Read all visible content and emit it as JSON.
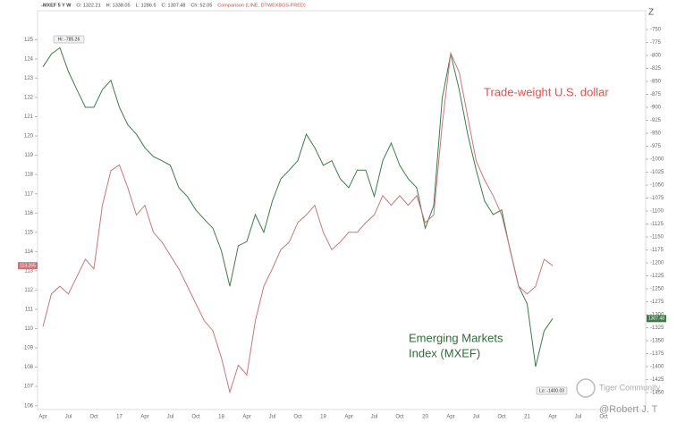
{
  "chart_data": {
    "type": "line",
    "header": [
      "-MXEF 5 Y W",
      "O: 1322.21",
      "H: 1338.05",
      "L: 1286.5",
      "C: 1307.48",
      "Ch: 52.05"
    ],
    "comparison": "Comparison (LINE, DTWEXBGS-FRED)",
    "annotations": {
      "dollar": "Trade-weight U.S. dollar",
      "mxef_1": "Emerging Markets",
      "mxef_2": "Index (MXEF)",
      "hi": "Hi: -785.26",
      "lo": "Lo: -1400.03",
      "watermark": "Tiger Community",
      "author": "@Robert J. T"
    },
    "xtick_labels": [
      "Apr",
      "Jul",
      "Oct",
      "17",
      "Apr",
      "Jul",
      "Oct",
      "18",
      "Apr",
      "Jul",
      "Oct",
      "19",
      "Apr",
      "Jul",
      "Oct",
      "20",
      "Apr",
      "Jul",
      "Oct",
      "21",
      "Apr",
      "Jul",
      "Oct"
    ],
    "ylim": [
      105.8,
      126.5
    ],
    "yticks": [
      106,
      107,
      108,
      109,
      110,
      111,
      112,
      113,
      114,
      115,
      116,
      117,
      118,
      119,
      120,
      121,
      122,
      123,
      124,
      125
    ],
    "y2lim": [
      -1482.8,
      -713.8
    ],
    "y2ticks": [
      -750,
      -775,
      -800,
      -825,
      -850,
      -875,
      -900,
      -925,
      -950,
      -975,
      -1000,
      -1025,
      -1050,
      -1075,
      -1100,
      -1125,
      -1150,
      -1175,
      -1200,
      -1225,
      -1250,
      -1275,
      -1300,
      -1325,
      -1350,
      -1375,
      -1400,
      -1425,
      -1450
    ],
    "series": [
      {
        "name": "MXEF",
        "color": "#3f7a4c",
        "axis": "y2",
        "last_label": "1307.48",
        "values": [
          -822,
          -797,
          -785.26,
          -831,
          -866,
          -900,
          -900,
          -866,
          -848,
          -900,
          -934,
          -952,
          -978,
          -995,
          -1003,
          -1012,
          -1055,
          -1072,
          -1098,
          -1116,
          -1133,
          -1176,
          -1245,
          -1167,
          -1159,
          -1107,
          -1141,
          -1081,
          -1038,
          -1021,
          -1003,
          -952,
          -978,
          -1012,
          -1003,
          -1038,
          -1055,
          -1021,
          -1021,
          -1072,
          -1003,
          -969,
          -1012,
          -1038,
          -1055,
          -1133,
          -1090,
          -883,
          -797,
          -866,
          -952,
          -1021,
          -1081,
          -1107,
          -1098,
          -1176,
          -1245,
          -1279,
          -1400.03,
          -1331,
          -1307.48
        ]
      },
      {
        "name": "DTWEXBGS",
        "color": "#c9767a",
        "last_label": "113.265",
        "values": [
          110.1,
          111.8,
          112.2,
          111.8,
          112.7,
          113.6,
          113.1,
          116.4,
          118.2,
          118.5,
          117.3,
          115.9,
          116.4,
          115.0,
          114.5,
          113.8,
          113.1,
          112.2,
          111.3,
          110.4,
          109.9,
          108.5,
          106.7,
          108.1,
          107.6,
          110.4,
          112.2,
          113.1,
          114.1,
          114.5,
          115.5,
          115.9,
          116.4,
          115.0,
          114.1,
          114.5,
          115.0,
          115.0,
          115.5,
          115.9,
          116.9,
          116.4,
          116.9,
          116.4,
          116.9,
          115.5,
          115.9,
          120.6,
          124.3,
          123.3,
          121.0,
          118.7,
          117.7,
          116.9,
          115.9,
          114.1,
          112.2,
          111.8,
          112.2,
          113.6,
          113.265
        ]
      }
    ]
  }
}
